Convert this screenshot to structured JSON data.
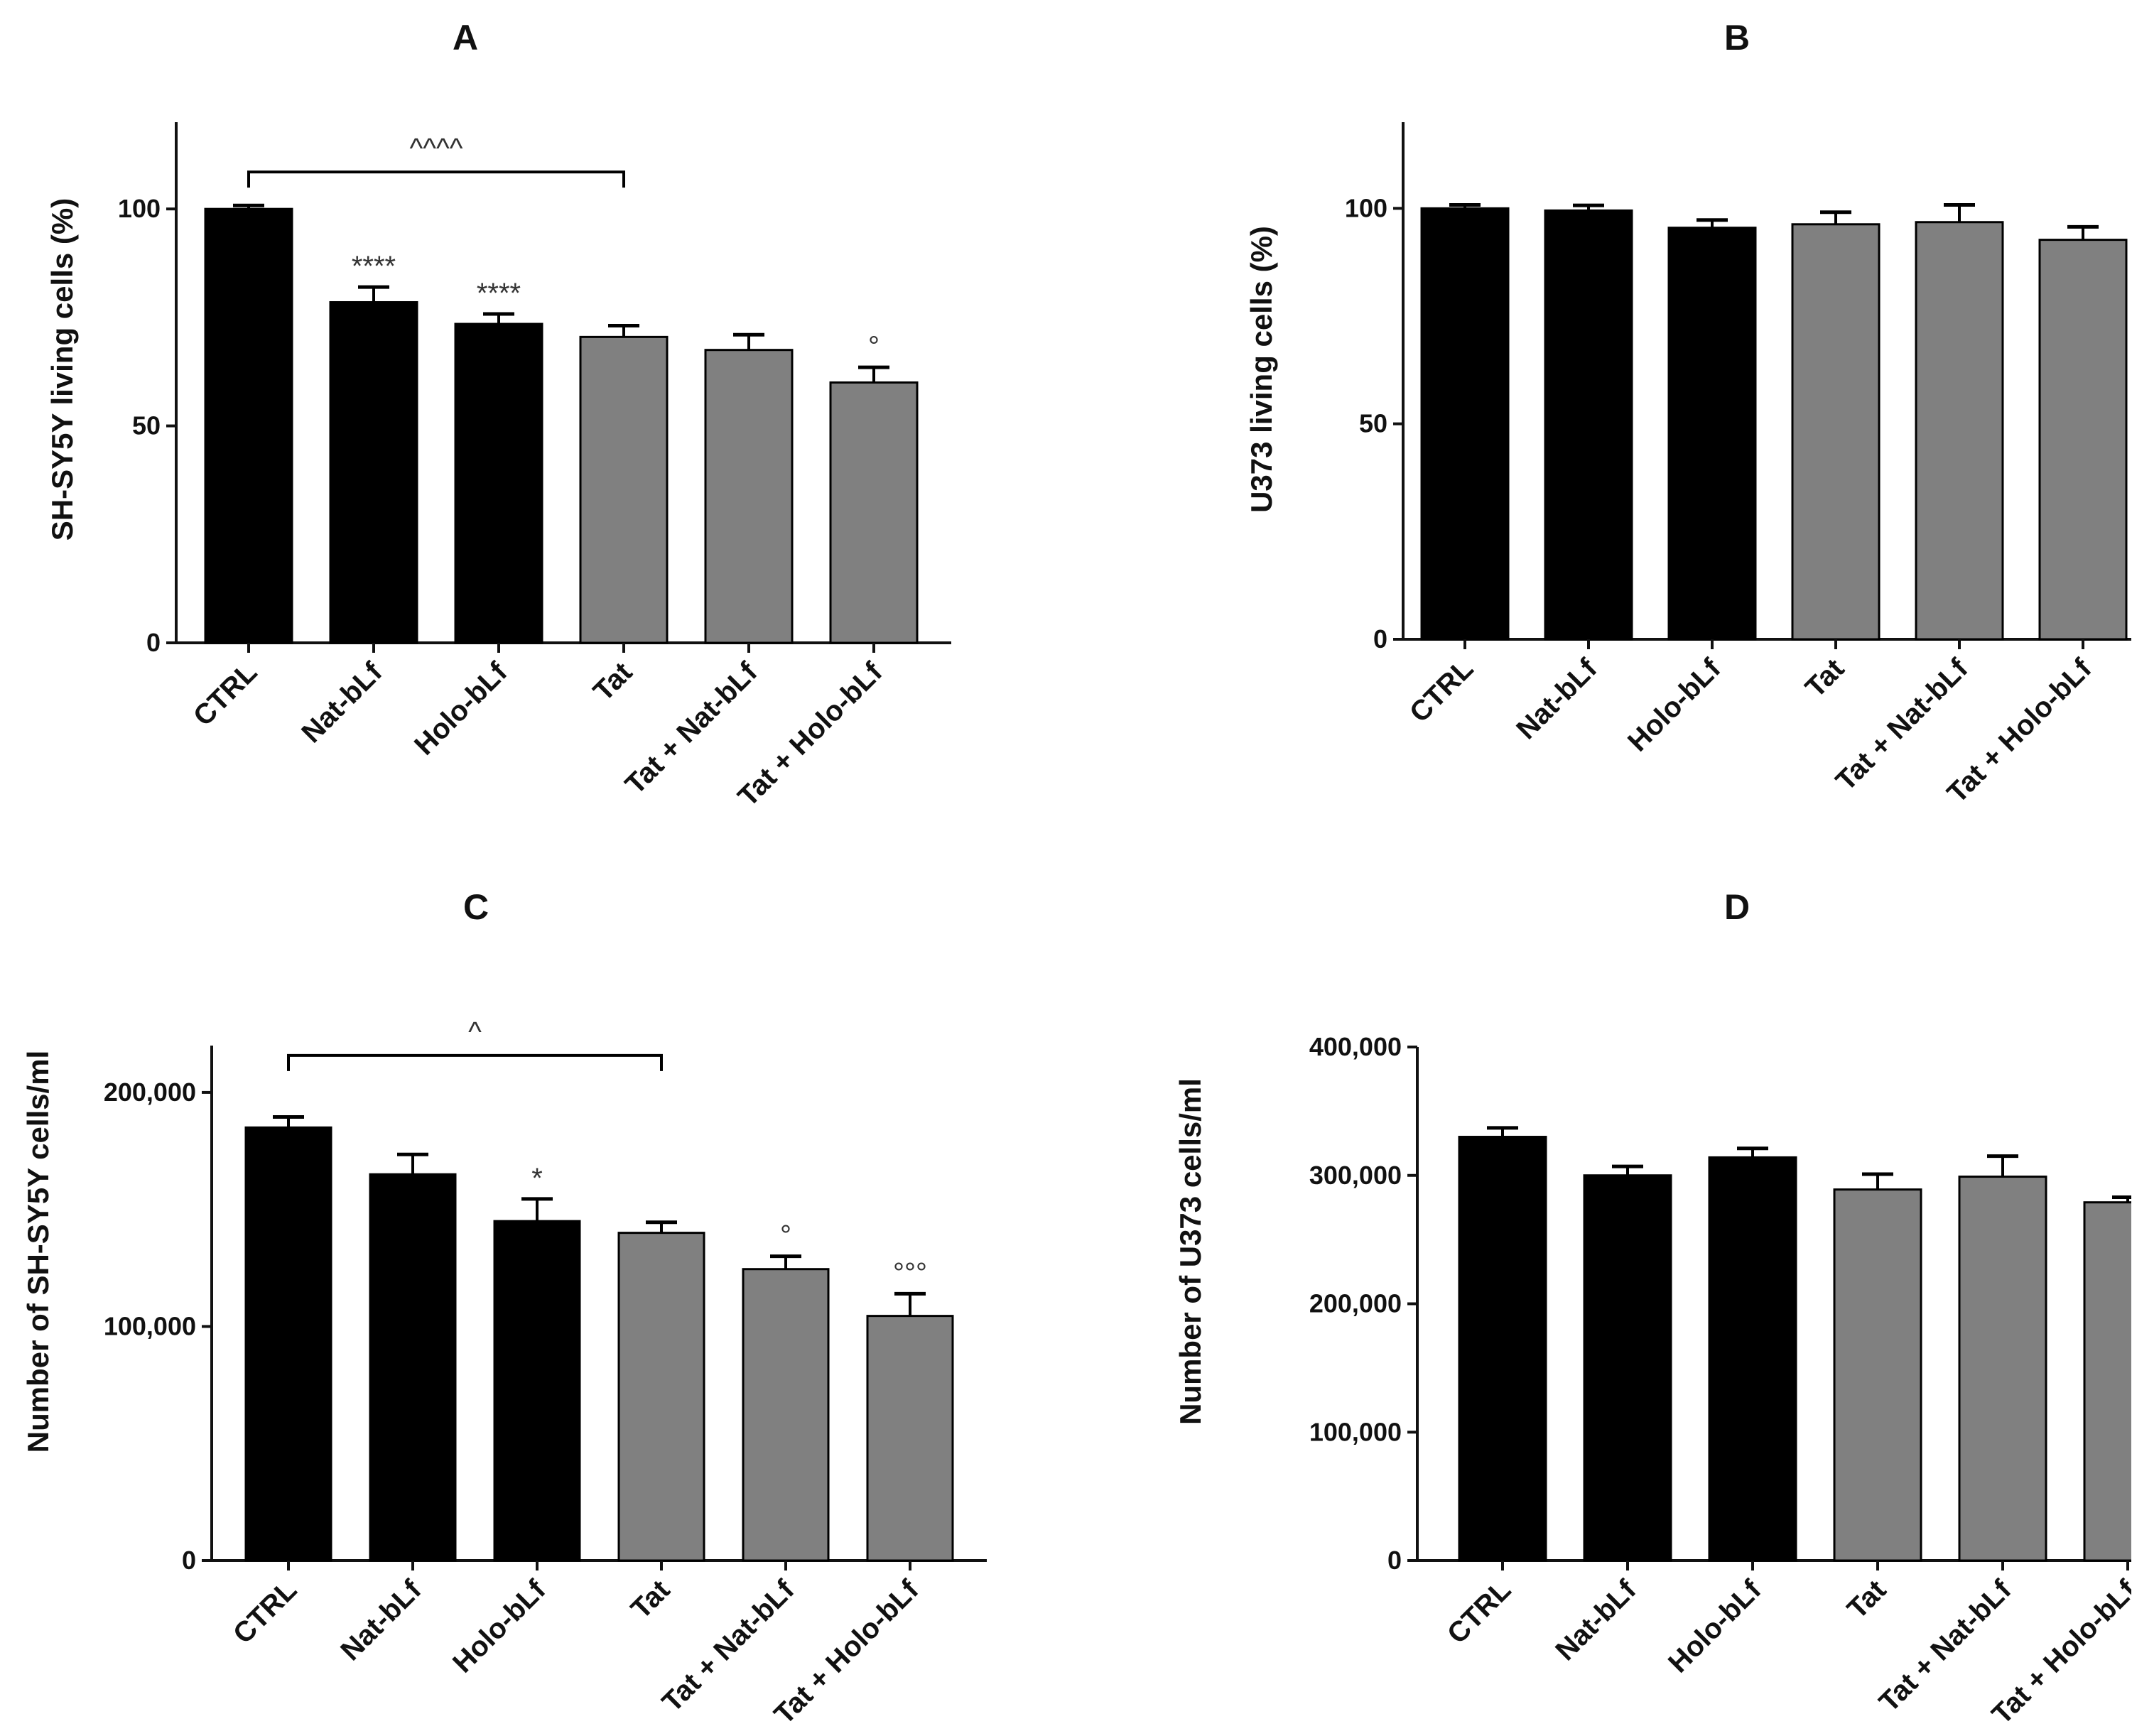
{
  "colors": {
    "control": "#000000",
    "tat": "#808080",
    "axis": "#111111"
  },
  "chart_data": [
    {
      "panel": "A",
      "type": "bar",
      "ylabel": "SH-SY5Y living cells (%)",
      "categories": [
        "CTRL",
        "Nat-bLf",
        "Holo-bLf",
        "Tat",
        "Tat + Nat-bLf",
        "Tat + Holo-bLf"
      ],
      "values": [
        100,
        78.5,
        73.5,
        70.5,
        67.5,
        60
      ],
      "errors": [
        0.8,
        3.5,
        2.3,
        2.6,
        3.5,
        3.5
      ],
      "groups": [
        "control",
        "control",
        "control",
        "tat",
        "tat",
        "tat"
      ],
      "ylim": [
        0,
        120
      ],
      "yticks": [
        0,
        50,
        100
      ],
      "ytick_labels": [
        "0",
        "50",
        "100"
      ],
      "annotations": [
        "",
        "****",
        "****",
        "",
        "",
        "°"
      ],
      "bracket": {
        "from": 0,
        "to": 3,
        "label": "^^^^"
      }
    },
    {
      "panel": "B",
      "type": "bar",
      "ylabel": "U373 living cells (%)",
      "categories": [
        "CTRL",
        "Nat-bLf",
        "Holo-bLf",
        "Tat",
        "Tat + Nat-bLf",
        "Tat + Holo-bLf"
      ],
      "values": [
        100,
        99.5,
        95.5,
        96.3,
        96.8,
        92.7
      ],
      "errors": [
        0.8,
        1.2,
        1.8,
        2.8,
        4.0,
        3.0
      ],
      "groups": [
        "control",
        "control",
        "control",
        "tat",
        "tat",
        "tat"
      ],
      "ylim": [
        0,
        120
      ],
      "yticks": [
        0,
        50,
        100
      ],
      "ytick_labels": [
        "0",
        "50",
        "100"
      ],
      "annotations": [
        "",
        "",
        "",
        "",
        "",
        ""
      ],
      "bracket": null
    },
    {
      "panel": "C",
      "type": "bar",
      "ylabel": "Number of SH-SY5Y cells/ml",
      "categories": [
        "CTRL",
        "Nat-bLf",
        "Holo-bLf",
        "Tat",
        "Tat + Nat-bLf",
        "Tat + Holo-bLf"
      ],
      "values": [
        185000,
        165000,
        145000,
        140000,
        124500,
        104500
      ],
      "errors": [
        4500,
        8500,
        9500,
        4500,
        5500,
        9500
      ],
      "groups": [
        "control",
        "control",
        "control",
        "tat",
        "tat",
        "tat"
      ],
      "ylim": [
        0,
        220000
      ],
      "yticks": [
        0,
        100000,
        200000
      ],
      "ytick_labels": [
        "0",
        "100,000",
        "200,000"
      ],
      "annotations": [
        "",
        "",
        "*",
        "",
        "°",
        "°°°"
      ],
      "bracket": {
        "from": 0,
        "to": 3,
        "label": "^"
      }
    },
    {
      "panel": "D",
      "type": "bar",
      "ylabel": "Number of U373 cells/ml",
      "categories": [
        "CTRL",
        "Nat-bLf",
        "Holo-bLf",
        "Tat",
        "Tat + Nat-bLf",
        "Tat + Holo-bLf"
      ],
      "values": [
        330000,
        300000,
        314000,
        289000,
        299000,
        279000
      ],
      "errors": [
        7000,
        7000,
        7000,
        12000,
        16000,
        4000
      ],
      "groups": [
        "control",
        "control",
        "control",
        "tat",
        "tat",
        "tat"
      ],
      "ylim": [
        0,
        400000
      ],
      "yticks": [
        0,
        100000,
        200000,
        300000,
        400000
      ],
      "ytick_labels": [
        "0",
        "100,000",
        "200,000",
        "300,000",
        "400,000"
      ],
      "annotations": [
        "",
        "",
        "",
        "",
        "",
        ""
      ],
      "bracket": null
    }
  ]
}
